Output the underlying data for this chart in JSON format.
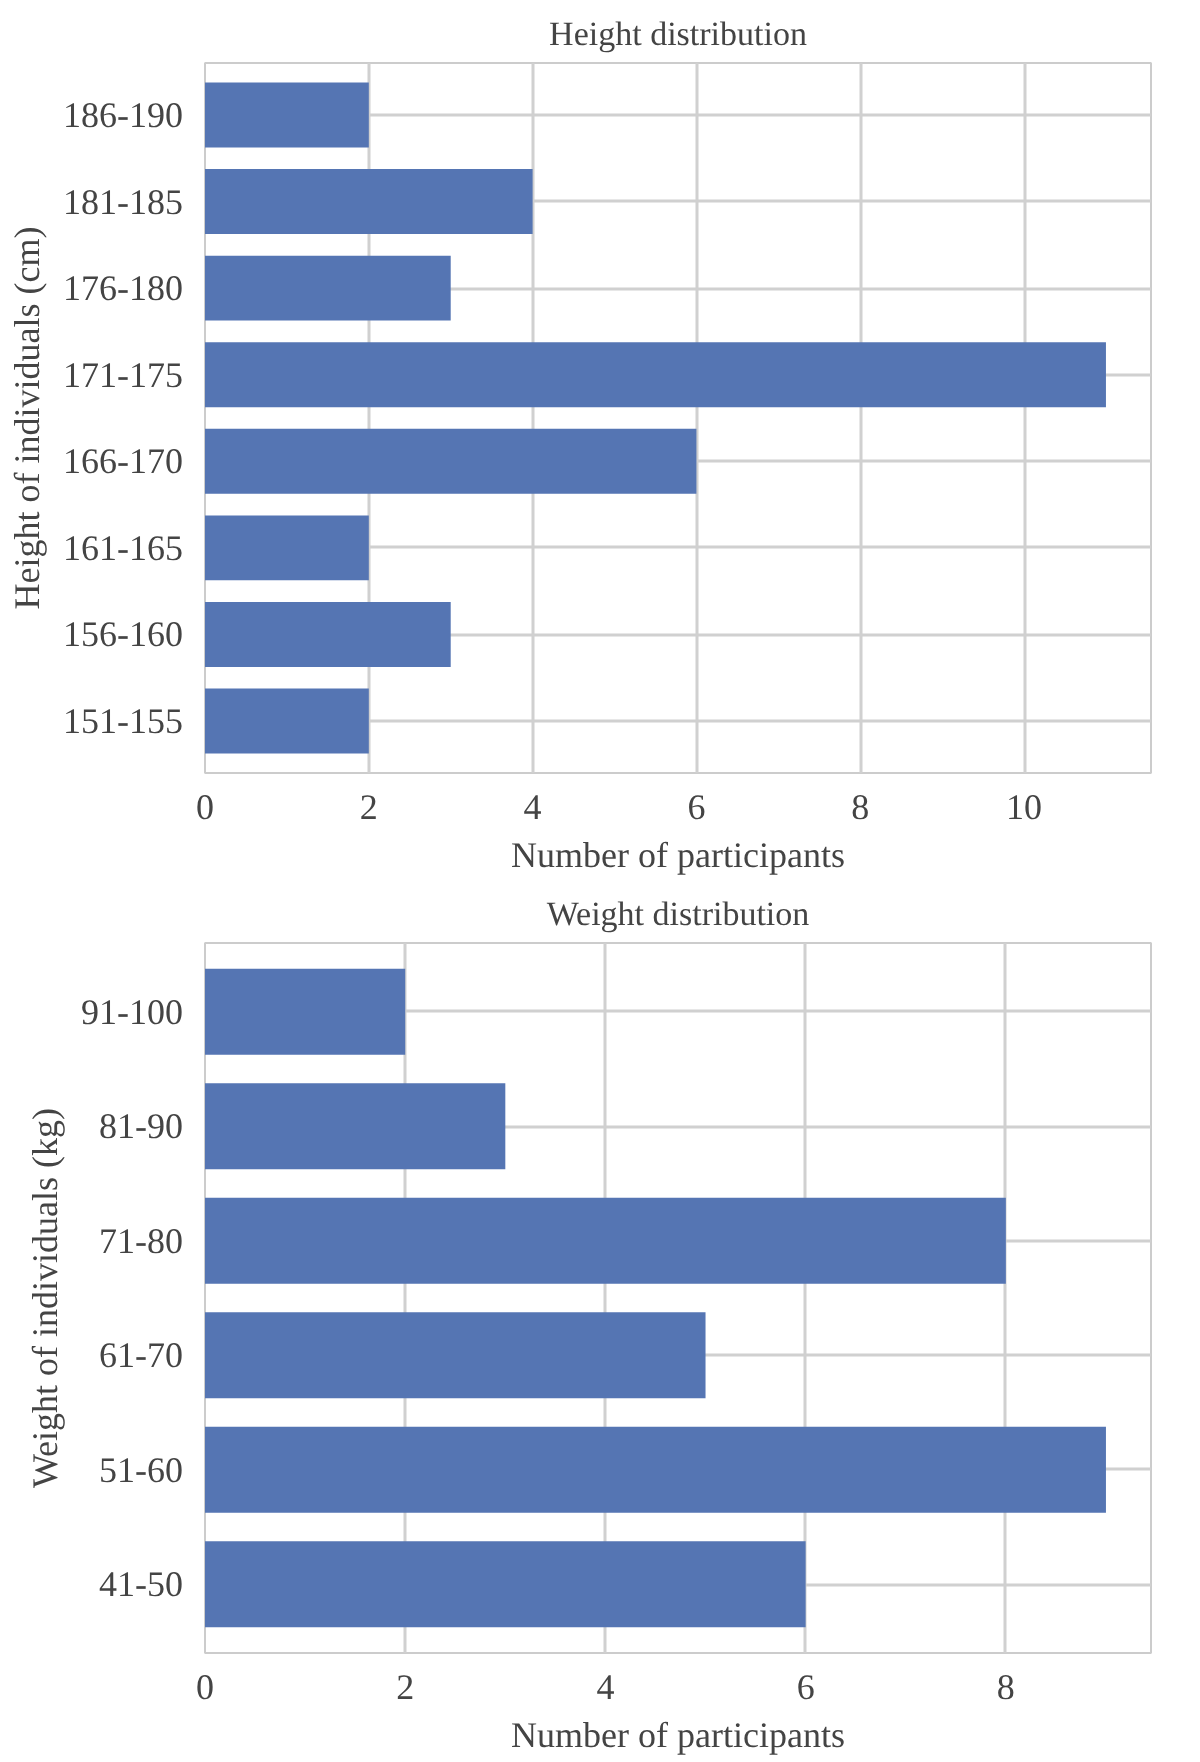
{
  "chart_data": [
    {
      "type": "bar",
      "orientation": "horizontal",
      "title": "Height distribution",
      "xlabel": "Number of participants",
      "ylabel": "Height of individuals (cm)",
      "categories": [
        "186-190",
        "181-185",
        "176-180",
        "171-175",
        "166-170",
        "161-165",
        "156-160",
        "151-155"
      ],
      "values": [
        2,
        4,
        3,
        11,
        6,
        2,
        3,
        2
      ],
      "color": "#5575b3",
      "xlim": [
        0,
        11.55
      ],
      "xticks": [
        0,
        2,
        4,
        6,
        8,
        10
      ],
      "grid": true
    },
    {
      "type": "bar",
      "orientation": "horizontal",
      "title": "Weight distribution",
      "xlabel": "Number of participants",
      "ylabel": "Weight of individuals (kg)",
      "categories": [
        "91-100",
        "81-90",
        "71-80",
        "61-70",
        "51-60",
        "41-50"
      ],
      "values": [
        2,
        3,
        8,
        5,
        9,
        6
      ],
      "color": "#5575b3",
      "xlim": [
        0,
        9.45
      ],
      "xticks": [
        0,
        2,
        4,
        6,
        8
      ],
      "grid": true
    }
  ]
}
